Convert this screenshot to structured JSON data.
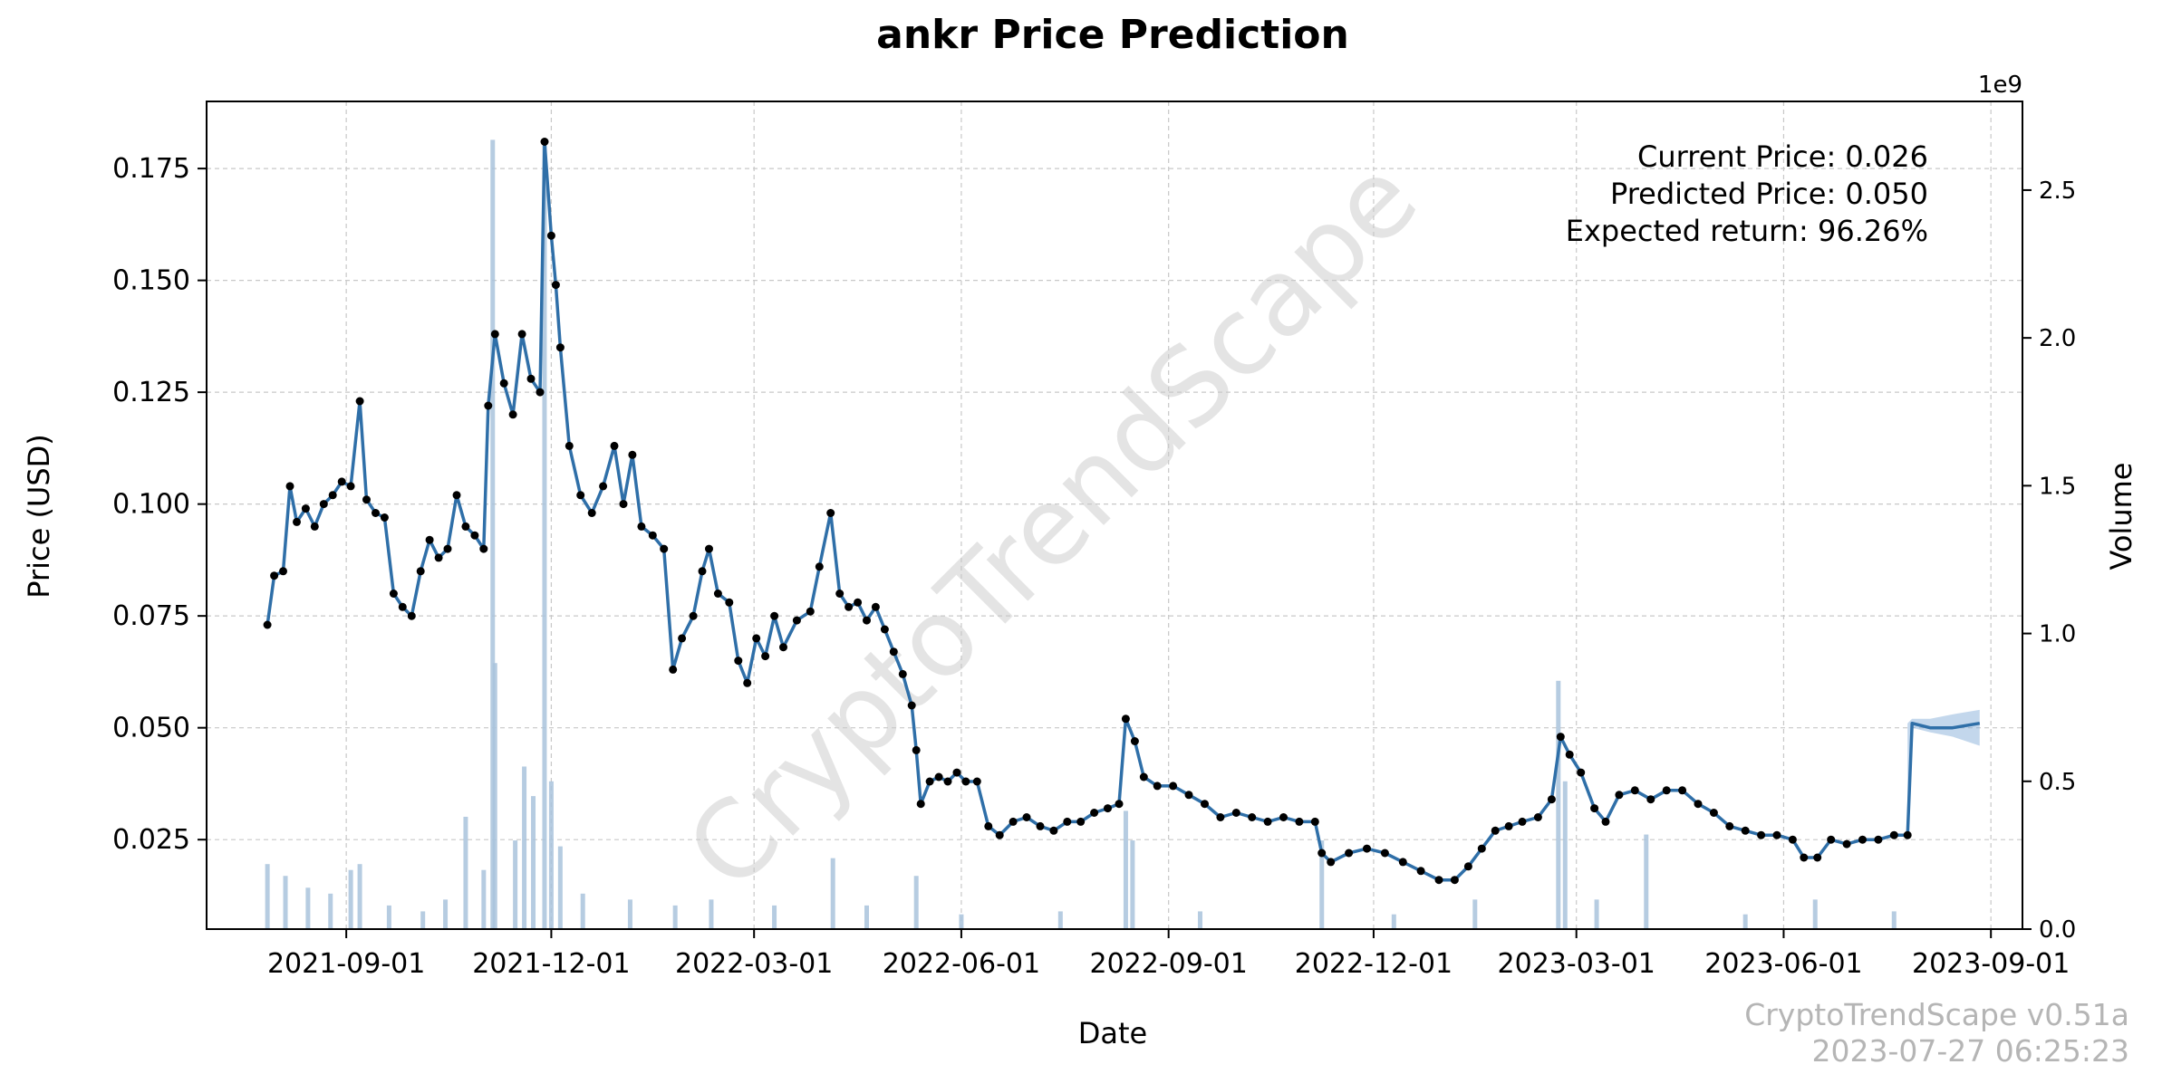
{
  "chart_data": {
    "type": "line",
    "title": "ankr Price Prediction",
    "xlabel": "Date",
    "ylabel": "Price (USD)",
    "y2label": "Volume",
    "y2_exponent_label": "1e9",
    "x_range": [
      "2021-07-01",
      "2023-09-15"
    ],
    "ylim": [
      0.005,
      0.19
    ],
    "y2lim": [
      0,
      2.8
    ],
    "x_ticks": [
      "2021-09-01",
      "2021-12-01",
      "2022-03-01",
      "2022-06-01",
      "2022-09-01",
      "2022-12-01",
      "2023-03-01",
      "2023-06-01",
      "2023-09-01"
    ],
    "y_ticks": [
      0.025,
      0.05,
      0.075,
      0.1,
      0.125,
      0.15,
      0.175
    ],
    "y_tick_labels": [
      "0.025",
      "0.050",
      "0.075",
      "0.100",
      "0.125",
      "0.150",
      "0.175"
    ],
    "y2_ticks": [
      0.0,
      0.5,
      1.0,
      1.5,
      2.0,
      2.5
    ],
    "y2_tick_labels": [
      "0.0",
      "0.5",
      "1.0",
      "1.5",
      "2.0",
      "2.5"
    ],
    "grid": true,
    "annotations": [
      "Current Price: 0.026",
      "Predicted Price: 0.050",
      "Expected return: 96.26%"
    ],
    "watermark": "CryptoTrendScape",
    "footer": [
      "CryptoTrendScape v0.51a",
      "2023-07-27 06:25:23"
    ],
    "colors": {
      "line": "#2f6fa8",
      "points": "#000000",
      "volume": "#a9c3dc",
      "band": "#7aa7d4"
    },
    "price_series": {
      "name": "Price",
      "points": [
        [
          "2021-07-28",
          0.073
        ],
        [
          "2021-07-31",
          0.084
        ],
        [
          "2021-08-04",
          0.085
        ],
        [
          "2021-08-07",
          0.104
        ],
        [
          "2021-08-10",
          0.096
        ],
        [
          "2021-08-14",
          0.099
        ],
        [
          "2021-08-18",
          0.095
        ],
        [
          "2021-08-22",
          0.1
        ],
        [
          "2021-08-26",
          0.102
        ],
        [
          "2021-08-30",
          0.105
        ],
        [
          "2021-09-03",
          0.104
        ],
        [
          "2021-09-07",
          0.123
        ],
        [
          "2021-09-10",
          0.101
        ],
        [
          "2021-09-14",
          0.098
        ],
        [
          "2021-09-18",
          0.097
        ],
        [
          "2021-09-22",
          0.08
        ],
        [
          "2021-09-26",
          0.077
        ],
        [
          "2021-09-30",
          0.075
        ],
        [
          "2021-10-04",
          0.085
        ],
        [
          "2021-10-08",
          0.092
        ],
        [
          "2021-10-12",
          0.088
        ],
        [
          "2021-10-16",
          0.09
        ],
        [
          "2021-10-20",
          0.102
        ],
        [
          "2021-10-24",
          0.095
        ],
        [
          "2021-10-28",
          0.093
        ],
        [
          "2021-11-01",
          0.09
        ],
        [
          "2021-11-03",
          0.122
        ],
        [
          "2021-11-06",
          0.138
        ],
        [
          "2021-11-10",
          0.127
        ],
        [
          "2021-11-14",
          0.12
        ],
        [
          "2021-11-18",
          0.138
        ],
        [
          "2021-11-22",
          0.128
        ],
        [
          "2021-11-26",
          0.125
        ],
        [
          "2021-11-28",
          0.181
        ],
        [
          "2021-12-01",
          0.16
        ],
        [
          "2021-12-03",
          0.149
        ],
        [
          "2021-12-05",
          0.135
        ],
        [
          "2021-12-09",
          0.113
        ],
        [
          "2021-12-14",
          0.102
        ],
        [
          "2021-12-19",
          0.098
        ],
        [
          "2021-12-24",
          0.104
        ],
        [
          "2021-12-29",
          0.113
        ],
        [
          "2022-01-02",
          0.1
        ],
        [
          "2022-01-06",
          0.111
        ],
        [
          "2022-01-10",
          0.095
        ],
        [
          "2022-01-15",
          0.093
        ],
        [
          "2022-01-20",
          0.09
        ],
        [
          "2022-01-24",
          0.063
        ],
        [
          "2022-01-28",
          0.07
        ],
        [
          "2022-02-02",
          0.075
        ],
        [
          "2022-02-06",
          0.085
        ],
        [
          "2022-02-09",
          0.09
        ],
        [
          "2022-02-13",
          0.08
        ],
        [
          "2022-02-18",
          0.078
        ],
        [
          "2022-02-22",
          0.065
        ],
        [
          "2022-02-26",
          0.06
        ],
        [
          "2022-03-02",
          0.07
        ],
        [
          "2022-03-06",
          0.066
        ],
        [
          "2022-03-10",
          0.075
        ],
        [
          "2022-03-14",
          0.068
        ],
        [
          "2022-03-20",
          0.074
        ],
        [
          "2022-03-26",
          0.076
        ],
        [
          "2022-03-30",
          0.086
        ],
        [
          "2022-04-04",
          0.098
        ],
        [
          "2022-04-08",
          0.08
        ],
        [
          "2022-04-12",
          0.077
        ],
        [
          "2022-04-16",
          0.078
        ],
        [
          "2022-04-20",
          0.074
        ],
        [
          "2022-04-24",
          0.077
        ],
        [
          "2022-04-28",
          0.072
        ],
        [
          "2022-05-02",
          0.067
        ],
        [
          "2022-05-06",
          0.062
        ],
        [
          "2022-05-10",
          0.055
        ],
        [
          "2022-05-12",
          0.045
        ],
        [
          "2022-05-14",
          0.033
        ],
        [
          "2022-05-18",
          0.038
        ],
        [
          "2022-05-22",
          0.039
        ],
        [
          "2022-05-26",
          0.038
        ],
        [
          "2022-05-30",
          0.04
        ],
        [
          "2022-06-03",
          0.038
        ],
        [
          "2022-06-08",
          0.038
        ],
        [
          "2022-06-13",
          0.028
        ],
        [
          "2022-06-18",
          0.026
        ],
        [
          "2022-06-24",
          0.029
        ],
        [
          "2022-06-30",
          0.03
        ],
        [
          "2022-07-06",
          0.028
        ],
        [
          "2022-07-12",
          0.027
        ],
        [
          "2022-07-18",
          0.029
        ],
        [
          "2022-07-24",
          0.029
        ],
        [
          "2022-07-30",
          0.031
        ],
        [
          "2022-08-05",
          0.032
        ],
        [
          "2022-08-10",
          0.033
        ],
        [
          "2022-08-13",
          0.052
        ],
        [
          "2022-08-17",
          0.047
        ],
        [
          "2022-08-21",
          0.039
        ],
        [
          "2022-08-27",
          0.037
        ],
        [
          "2022-09-03",
          0.037
        ],
        [
          "2022-09-10",
          0.035
        ],
        [
          "2022-09-17",
          0.033
        ],
        [
          "2022-09-24",
          0.03
        ],
        [
          "2022-10-01",
          0.031
        ],
        [
          "2022-10-08",
          0.03
        ],
        [
          "2022-10-15",
          0.029
        ],
        [
          "2022-10-22",
          0.03
        ],
        [
          "2022-10-29",
          0.029
        ],
        [
          "2022-11-05",
          0.029
        ],
        [
          "2022-11-08",
          0.022
        ],
        [
          "2022-11-12",
          0.02
        ],
        [
          "2022-11-20",
          0.022
        ],
        [
          "2022-11-28",
          0.023
        ],
        [
          "2022-12-06",
          0.022
        ],
        [
          "2022-12-14",
          0.02
        ],
        [
          "2022-12-22",
          0.018
        ],
        [
          "2022-12-30",
          0.016
        ],
        [
          "2023-01-06",
          0.016
        ],
        [
          "2023-01-12",
          0.019
        ],
        [
          "2023-01-18",
          0.023
        ],
        [
          "2023-01-24",
          0.027
        ],
        [
          "2023-01-30",
          0.028
        ],
        [
          "2023-02-05",
          0.029
        ],
        [
          "2023-02-12",
          0.03
        ],
        [
          "2023-02-18",
          0.034
        ],
        [
          "2023-02-22",
          0.048
        ],
        [
          "2023-02-26",
          0.044
        ],
        [
          "2023-03-03",
          0.04
        ],
        [
          "2023-03-09",
          0.032
        ],
        [
          "2023-03-14",
          0.029
        ],
        [
          "2023-03-20",
          0.035
        ],
        [
          "2023-03-27",
          0.036
        ],
        [
          "2023-04-03",
          0.034
        ],
        [
          "2023-04-10",
          0.036
        ],
        [
          "2023-04-17",
          0.036
        ],
        [
          "2023-04-24",
          0.033
        ],
        [
          "2023-05-01",
          0.031
        ],
        [
          "2023-05-08",
          0.028
        ],
        [
          "2023-05-15",
          0.027
        ],
        [
          "2023-05-22",
          0.026
        ],
        [
          "2023-05-29",
          0.026
        ],
        [
          "2023-06-05",
          0.025
        ],
        [
          "2023-06-10",
          0.021
        ],
        [
          "2023-06-16",
          0.021
        ],
        [
          "2023-06-22",
          0.025
        ],
        [
          "2023-06-29",
          0.024
        ],
        [
          "2023-07-06",
          0.025
        ],
        [
          "2023-07-13",
          0.025
        ],
        [
          "2023-07-20",
          0.026
        ],
        [
          "2023-07-26",
          0.026
        ]
      ]
    },
    "prediction_series": {
      "name": "Prediction",
      "points": [
        [
          "2023-07-26",
          0.026
        ],
        [
          "2023-07-28",
          0.051
        ],
        [
          "2023-08-05",
          0.05
        ],
        [
          "2023-08-15",
          0.05
        ],
        [
          "2023-08-27",
          0.051
        ]
      ],
      "band_upper": [
        0.051,
        0.052,
        0.052,
        0.053,
        0.054
      ],
      "band_lower": [
        0.026,
        0.05,
        0.049,
        0.048,
        0.046
      ]
    },
    "volume_series": {
      "name": "Volume",
      "points": [
        [
          "2021-07-28",
          0.22
        ],
        [
          "2021-08-05",
          0.18
        ],
        [
          "2021-08-15",
          0.14
        ],
        [
          "2021-08-25",
          0.12
        ],
        [
          "2021-09-03",
          0.2
        ],
        [
          "2021-09-07",
          0.22
        ],
        [
          "2021-09-20",
          0.08
        ],
        [
          "2021-10-05",
          0.06
        ],
        [
          "2021-10-15",
          0.1
        ],
        [
          "2021-10-24",
          0.38
        ],
        [
          "2021-11-01",
          0.2
        ],
        [
          "2021-11-05",
          2.67
        ],
        [
          "2021-11-06",
          0.9
        ],
        [
          "2021-11-15",
          0.3
        ],
        [
          "2021-11-19",
          0.55
        ],
        [
          "2021-11-23",
          0.45
        ],
        [
          "2021-11-28",
          2.65
        ],
        [
          "2021-12-01",
          0.5
        ],
        [
          "2021-12-05",
          0.28
        ],
        [
          "2021-12-15",
          0.12
        ],
        [
          "2022-01-05",
          0.1
        ],
        [
          "2022-01-25",
          0.08
        ],
        [
          "2022-02-10",
          0.1
        ],
        [
          "2022-03-10",
          0.08
        ],
        [
          "2022-04-05",
          0.24
        ],
        [
          "2022-04-20",
          0.08
        ],
        [
          "2022-05-12",
          0.18
        ],
        [
          "2022-06-01",
          0.05
        ],
        [
          "2022-07-15",
          0.06
        ],
        [
          "2022-08-13",
          0.4
        ],
        [
          "2022-08-16",
          0.3
        ],
        [
          "2022-09-15",
          0.06
        ],
        [
          "2022-11-08",
          0.3
        ],
        [
          "2022-12-10",
          0.05
        ],
        [
          "2023-01-15",
          0.1
        ],
        [
          "2023-02-21",
          0.84
        ],
        [
          "2023-02-24",
          0.5
        ],
        [
          "2023-03-10",
          0.1
        ],
        [
          "2023-04-01",
          0.32
        ],
        [
          "2023-05-15",
          0.05
        ],
        [
          "2023-06-15",
          0.1
        ],
        [
          "2023-07-20",
          0.06
        ]
      ]
    }
  }
}
